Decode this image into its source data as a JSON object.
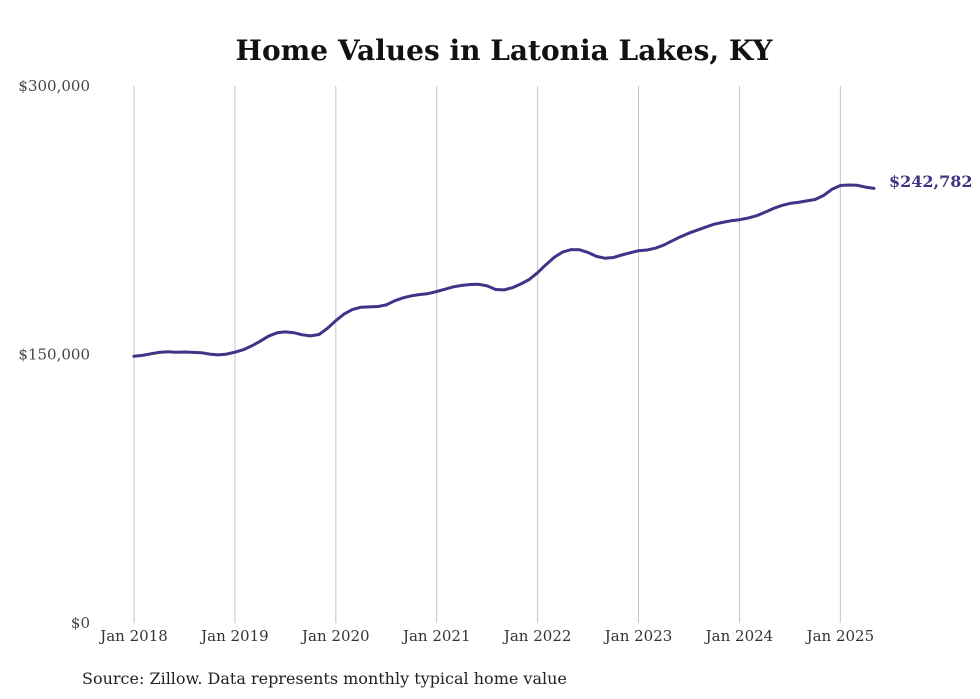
{
  "chart_data": {
    "type": "line",
    "title": "Home Values in Latonia Lakes, KY",
    "source": "Source: Zillow. Data represents monthly typical home value",
    "ylim": [
      0,
      300000
    ],
    "yticks": [
      {
        "value": 0,
        "label": "$0"
      },
      {
        "value": 150000,
        "label": "$150,000"
      },
      {
        "value": 300000,
        "label": "$300,000"
      }
    ],
    "xlim": [
      "2018-01",
      "2025-05"
    ],
    "xticks": [
      {
        "value": "2018-01",
        "label": "Jan 2018"
      },
      {
        "value": "2019-01",
        "label": "Jan 2019"
      },
      {
        "value": "2020-01",
        "label": "Jan 2020"
      },
      {
        "value": "2021-01",
        "label": "Jan 2021"
      },
      {
        "value": "2022-01",
        "label": "Jan 2022"
      },
      {
        "value": "2023-01",
        "label": "Jan 2023"
      },
      {
        "value": "2024-01",
        "label": "Jan 2024"
      },
      {
        "value": "2025-01",
        "label": "Jan 2025"
      }
    ],
    "grid": {
      "vertical": true,
      "horizontal": false
    },
    "line_color": "#3d3585",
    "end_label": "$242,782",
    "series": [
      {
        "x": [
          "2018-01",
          "2018-02",
          "2018-03",
          "2018-04",
          "2018-05",
          "2018-06",
          "2018-07",
          "2018-08",
          "2018-09",
          "2018-10",
          "2018-11",
          "2018-12",
          "2019-01",
          "2019-02",
          "2019-03",
          "2019-04",
          "2019-05",
          "2019-06",
          "2019-07",
          "2019-08",
          "2019-09",
          "2019-10",
          "2019-11",
          "2019-12",
          "2020-01",
          "2020-02",
          "2020-03",
          "2020-04",
          "2020-05",
          "2020-06",
          "2020-07",
          "2020-08",
          "2020-09",
          "2020-10",
          "2020-11",
          "2020-12",
          "2021-01",
          "2021-02",
          "2021-03",
          "2021-04",
          "2021-05",
          "2021-06",
          "2021-07",
          "2021-08",
          "2021-09",
          "2021-10",
          "2021-11",
          "2021-12",
          "2022-01",
          "2022-02",
          "2022-03",
          "2022-04",
          "2022-05",
          "2022-06",
          "2022-07",
          "2022-08",
          "2022-09",
          "2022-10",
          "2022-11",
          "2022-12",
          "2023-01",
          "2023-02",
          "2023-03",
          "2023-04",
          "2023-05",
          "2023-06",
          "2023-07",
          "2023-08",
          "2023-09",
          "2023-10",
          "2023-11",
          "2023-12",
          "2024-01",
          "2024-02",
          "2024-03",
          "2024-04",
          "2024-05",
          "2024-06",
          "2024-07",
          "2024-08",
          "2024-09",
          "2024-10",
          "2024-11",
          "2024-12",
          "2025-01",
          "2025-02",
          "2025-03",
          "2025-04",
          "2025-05"
        ],
        "values": [
          149000,
          149500,
          150400,
          151200,
          151500,
          151300,
          151400,
          151200,
          151000,
          150200,
          149800,
          150200,
          151300,
          152700,
          154800,
          157400,
          160200,
          162100,
          162600,
          162200,
          161000,
          160400,
          161200,
          164600,
          168900,
          172700,
          175200,
          176400,
          176600,
          176800,
          177700,
          180000,
          181700,
          182800,
          183500,
          184000,
          185200,
          186500,
          187800,
          188600,
          189100,
          189200,
          188300,
          186300,
          186100,
          187300,
          189400,
          191900,
          195700,
          200200,
          204400,
          207300,
          208600,
          208500,
          207000,
          204800,
          203800,
          204200,
          205600,
          206800,
          208000,
          208400,
          209400,
          211100,
          213500,
          215800,
          217800,
          219500,
          221200,
          222800,
          223800,
          224700,
          225300,
          226200,
          227500,
          229400,
          231500,
          233200,
          234400,
          235000,
          235800,
          236600,
          238800,
          242300,
          244400,
          244700,
          244500,
          243500,
          242782
        ]
      }
    ]
  }
}
